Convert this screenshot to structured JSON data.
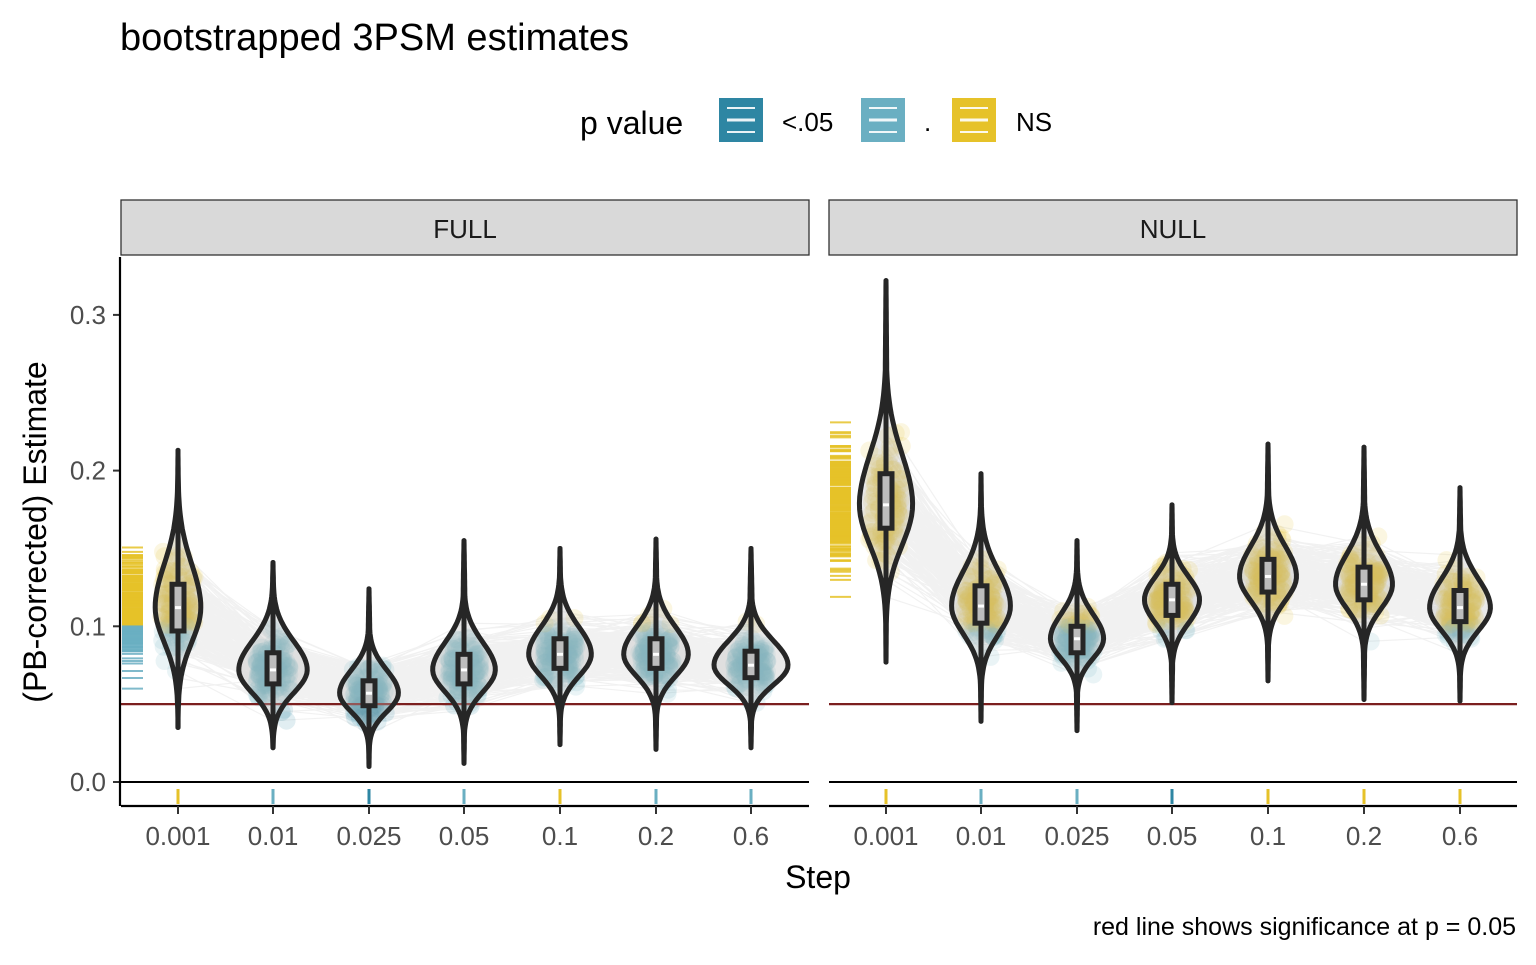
{
  "chart_data": {
    "type": "violin",
    "title": "bootstrapped 3PSM estimates",
    "xlabel": "Step",
    "ylabel": "(PB-corrected) Estimate",
    "caption": "red line shows significance at p = 0.05",
    "legend": {
      "title": "p value",
      "position": "top",
      "entries": [
        {
          "label": "<.05",
          "color": "#2E86A3"
        },
        {
          "label": ".",
          "color": "#6AAFC2"
        },
        {
          "label": "NS",
          "color": "#E6C229"
        }
      ]
    },
    "categories": [
      "0.001",
      "0.01",
      "0.025",
      "0.05",
      "0.1",
      "0.2",
      "0.6"
    ],
    "y_ticks": [
      "0.0",
      "0.1",
      "0.2",
      "0.3"
    ],
    "ylim": [
      0,
      0.335
    ],
    "reference_line": {
      "y": 0.05,
      "color": "#7B1F1F"
    },
    "panels": [
      {
        "label": "FULL",
        "medians": [
          0.112,
          0.072,
          0.057,
          0.072,
          0.082,
          0.082,
          0.075
        ],
        "q1": [
          0.097,
          0.063,
          0.049,
          0.063,
          0.073,
          0.073,
          0.067
        ],
        "q3": [
          0.127,
          0.083,
          0.065,
          0.082,
          0.092,
          0.092,
          0.084
        ],
        "lower": [
          0.035,
          0.022,
          0.01,
          0.012,
          0.024,
          0.021,
          0.022
        ],
        "upper": [
          0.213,
          0.141,
          0.124,
          0.155,
          0.15,
          0.156,
          0.15
        ],
        "violin_width": [
          0.48,
          0.72,
          0.62,
          0.66,
          0.66,
          0.68,
          0.78
        ],
        "bottom_rug_colors": [
          "#E6C229",
          "#6AAFC2",
          "#2E86A3",
          "#6AAFC2",
          "#E6C229",
          "#6AAFC2",
          "#6AAFC2"
        ]
      },
      {
        "label": "NULL",
        "medians": [
          0.178,
          0.113,
          0.092,
          0.117,
          0.132,
          0.127,
          0.112
        ],
        "q1": [
          0.163,
          0.102,
          0.083,
          0.107,
          0.122,
          0.117,
          0.103
        ],
        "q3": [
          0.198,
          0.126,
          0.1,
          0.127,
          0.143,
          0.138,
          0.123
        ],
        "lower": [
          0.077,
          0.039,
          0.033,
          0.051,
          0.065,
          0.053,
          0.052
        ],
        "upper": [
          0.322,
          0.198,
          0.155,
          0.178,
          0.217,
          0.215,
          0.189
        ],
        "violin_width": [
          0.56,
          0.62,
          0.56,
          0.58,
          0.6,
          0.6,
          0.64
        ],
        "bottom_rug_colors": [
          "#E6C229",
          "#6AAFC2",
          "#6AAFC2",
          "#2E86A3",
          "#E6C229",
          "#E6C229",
          "#E6C229"
        ]
      }
    ]
  }
}
